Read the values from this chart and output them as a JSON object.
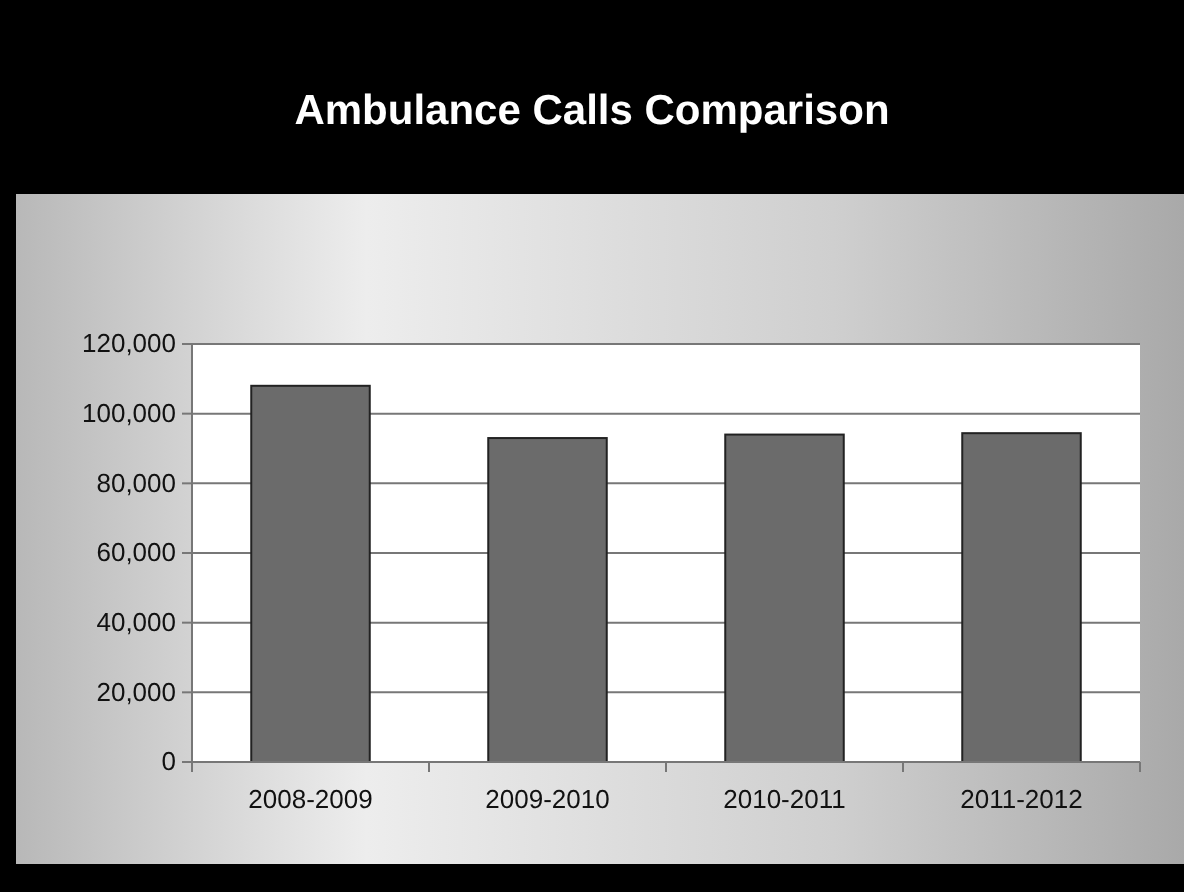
{
  "chart_data": {
    "type": "bar",
    "title": "Ambulance Calls Comparison",
    "categories": [
      "2008-2009",
      "2009-2010",
      "2010-2011",
      "2011-2012"
    ],
    "values": [
      108000,
      93000,
      94000,
      94400
    ],
    "color": "#6b6b6b",
    "ylim": [
      0,
      120000
    ],
    "yticks": [
      {
        "value": 0,
        "label": "0"
      },
      {
        "value": 20000,
        "label": "20,000"
      },
      {
        "value": 40000,
        "label": "40,000"
      },
      {
        "value": 60000,
        "label": "60,000"
      },
      {
        "value": 80000,
        "label": "80,000"
      },
      {
        "value": 100000,
        "label": "100,000"
      },
      {
        "value": 120000,
        "label": "120,000"
      }
    ],
    "grid": "y"
  }
}
